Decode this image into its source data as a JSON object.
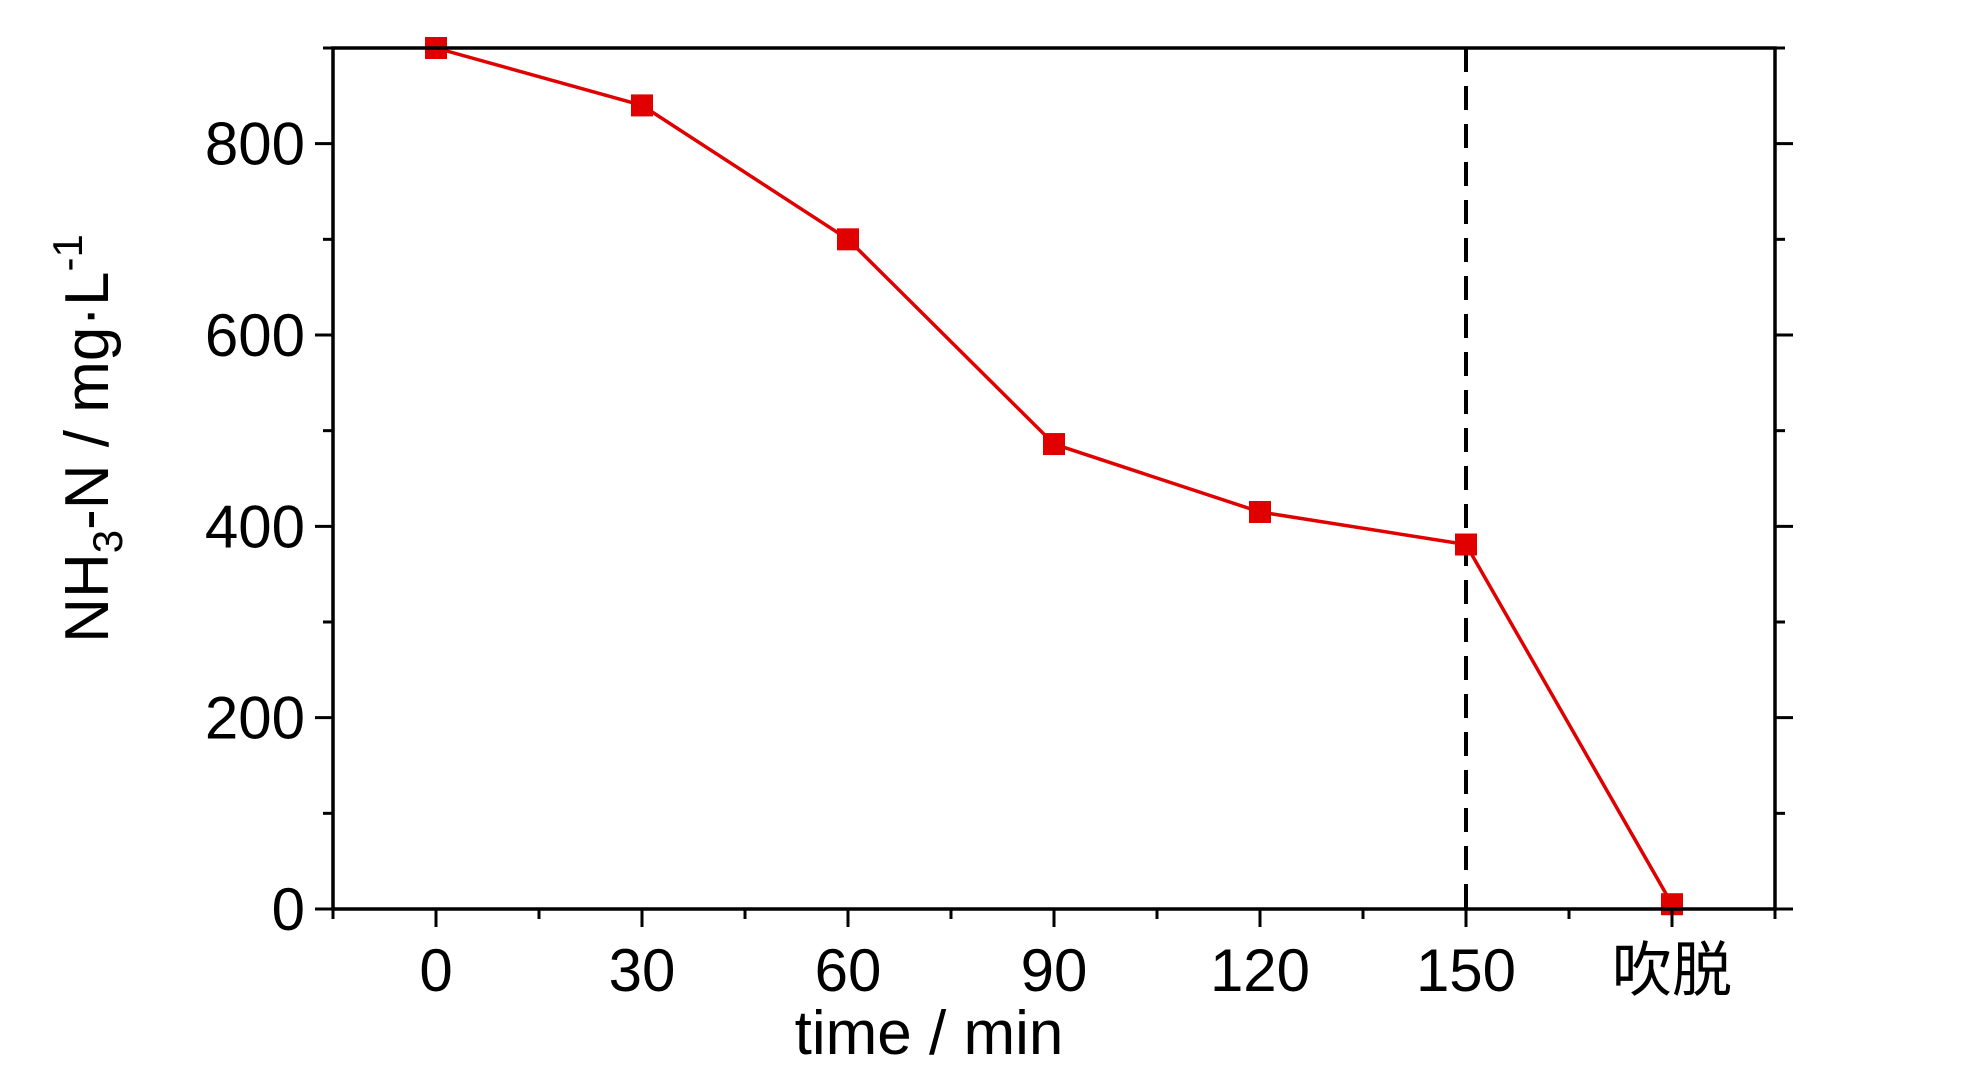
{
  "chart_data": {
    "type": "line",
    "xlabel": "time / min",
    "ylabel": {
      "base": "NH",
      "sub": "3",
      "middle": "-N / mg·L",
      "sup": "-1"
    },
    "categories": [
      "0",
      "30",
      "60",
      "90",
      "120",
      "150",
      "吹脱"
    ],
    "x_positions": [
      0,
      30,
      60,
      90,
      120,
      150,
      180
    ],
    "xlim": [
      -15,
      195
    ],
    "ylim": [
      0,
      900
    ],
    "yticks": [
      0,
      200,
      400,
      600,
      800
    ],
    "series": [
      {
        "values": [
          900,
          840,
          700,
          486,
          415,
          381,
          5
        ],
        "color": "#e00000",
        "marker": "square"
      }
    ],
    "vertical_reference_line": {
      "x": 150,
      "style": "dashed",
      "color": "#000000"
    },
    "grid": false,
    "legend": "none"
  }
}
